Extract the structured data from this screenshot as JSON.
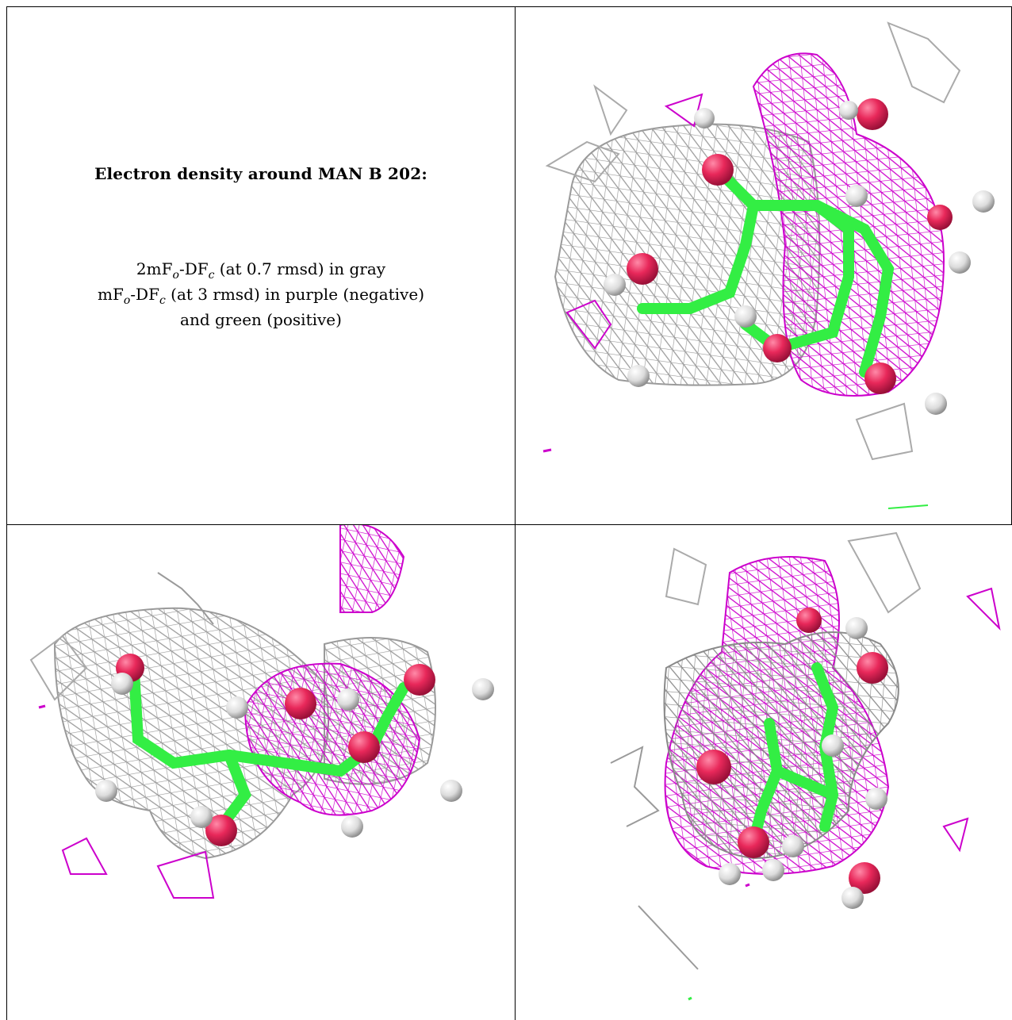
{
  "caption": {
    "title": "Electron density around MAN B 202:",
    "line1": {
      "a": "2mF",
      "o": "o",
      "b": "-DF",
      "c": "c",
      "rest": " (at 0.7 rmsd) in gray"
    },
    "line2": {
      "a": "mF",
      "o": "o",
      "b": "-DF",
      "c": "c",
      "rest": " (at 3 rmsd) in purple (negative)"
    },
    "line3": "and green (positive)"
  },
  "colors": {
    "mesh_gray": "#9a9a9a",
    "mesh_purple": "#cc00cc",
    "carbon_green": "#33ee44",
    "oxygen_red": "#e8285a",
    "hydrogen_white": "#e8e8e8",
    "border": "#000000"
  },
  "panels": [
    {
      "id": "top-right",
      "description": "molecular-render"
    },
    {
      "id": "bottom-left",
      "description": "molecular-render"
    },
    {
      "id": "bottom-right",
      "description": "molecular-render"
    }
  ]
}
